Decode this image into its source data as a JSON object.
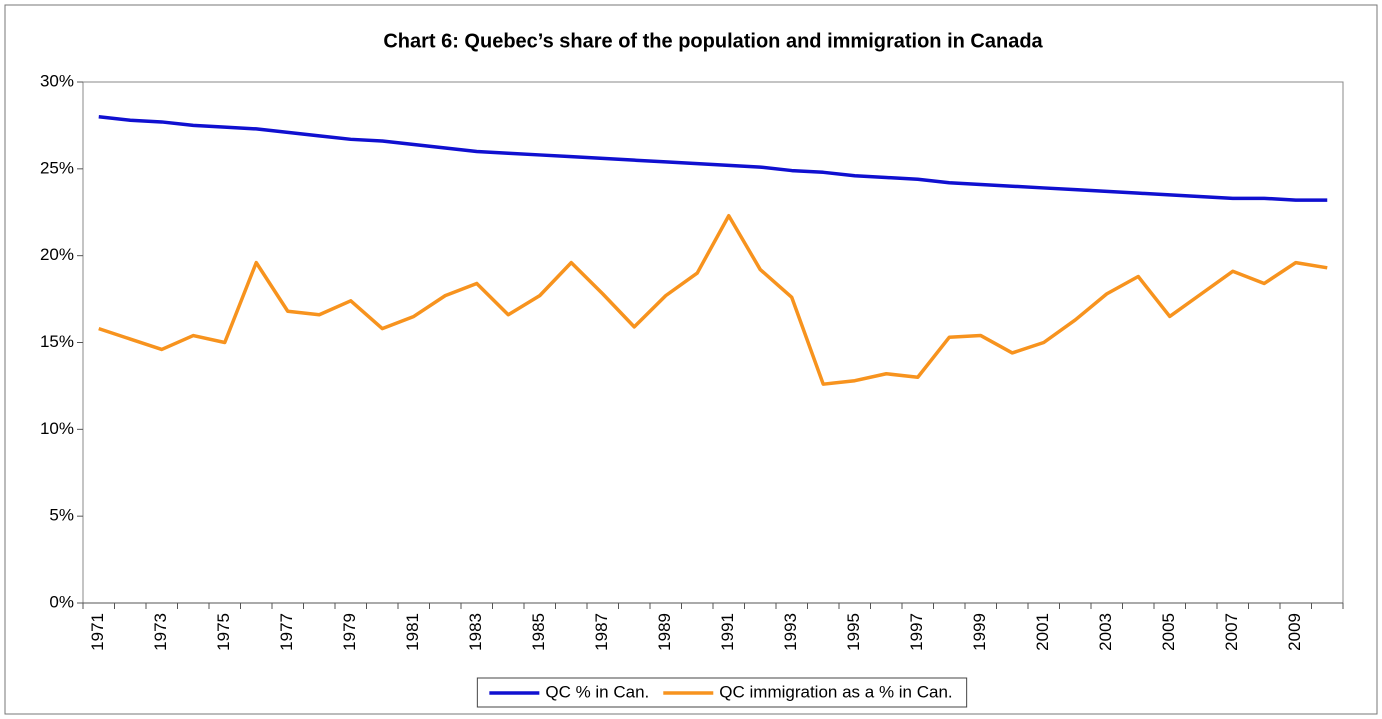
{
  "chart_data": {
    "type": "line",
    "title": "Chart 6: Quebec’s share of the population and immigration in Canada",
    "categories": [
      "1971",
      null,
      "1973",
      null,
      "1975",
      null,
      "1977",
      null,
      "1979",
      null,
      "1981",
      null,
      "1983",
      null,
      "1985",
      null,
      "1987",
      null,
      "1989",
      null,
      "1991",
      null,
      "1993",
      null,
      "1995",
      null,
      "1997",
      null,
      "1999",
      null,
      "2001",
      null,
      "2003",
      null,
      "2005",
      null,
      "2007",
      null,
      "2009",
      null
    ],
    "series": [
      {
        "name": "QC % in Can.",
        "color": "#1010d0",
        "values": [
          28.0,
          27.8,
          27.7,
          27.5,
          27.4,
          27.3,
          27.1,
          26.9,
          26.7,
          26.6,
          26.4,
          26.2,
          26.0,
          25.9,
          25.8,
          25.7,
          25.6,
          25.5,
          25.4,
          25.3,
          25.2,
          25.1,
          24.9,
          24.8,
          24.6,
          24.5,
          24.4,
          24.2,
          24.1,
          24.0,
          23.9,
          23.8,
          23.7,
          23.6,
          23.5,
          23.4,
          23.3,
          23.3,
          23.2,
          23.2
        ]
      },
      {
        "name": "QC immigration as a % in Can.",
        "color": "#f7931e",
        "values": [
          15.8,
          15.2,
          14.6,
          15.4,
          15.0,
          19.6,
          16.8,
          16.6,
          17.4,
          15.8,
          16.5,
          17.7,
          18.4,
          16.6,
          17.7,
          19.6,
          17.8,
          15.9,
          17.7,
          19.0,
          22.3,
          19.2,
          17.6,
          12.6,
          12.8,
          13.2,
          13.0,
          15.3,
          15.4,
          14.4,
          15.0,
          16.3,
          17.8,
          18.8,
          16.5,
          17.8,
          19.1,
          18.4,
          19.6,
          19.3
        ]
      }
    ],
    "ylim": [
      0,
      30
    ],
    "yticks": [
      {
        "value": 0,
        "label": "0%"
      },
      {
        "value": 5,
        "label": "5%"
      },
      {
        "value": 10,
        "label": "10%"
      },
      {
        "value": 15,
        "label": "15%"
      },
      {
        "value": 20,
        "label": "20%"
      },
      {
        "value": 25,
        "label": "25%"
      },
      {
        "value": 30,
        "label": "30%"
      }
    ],
    "legend": "bottom"
  }
}
